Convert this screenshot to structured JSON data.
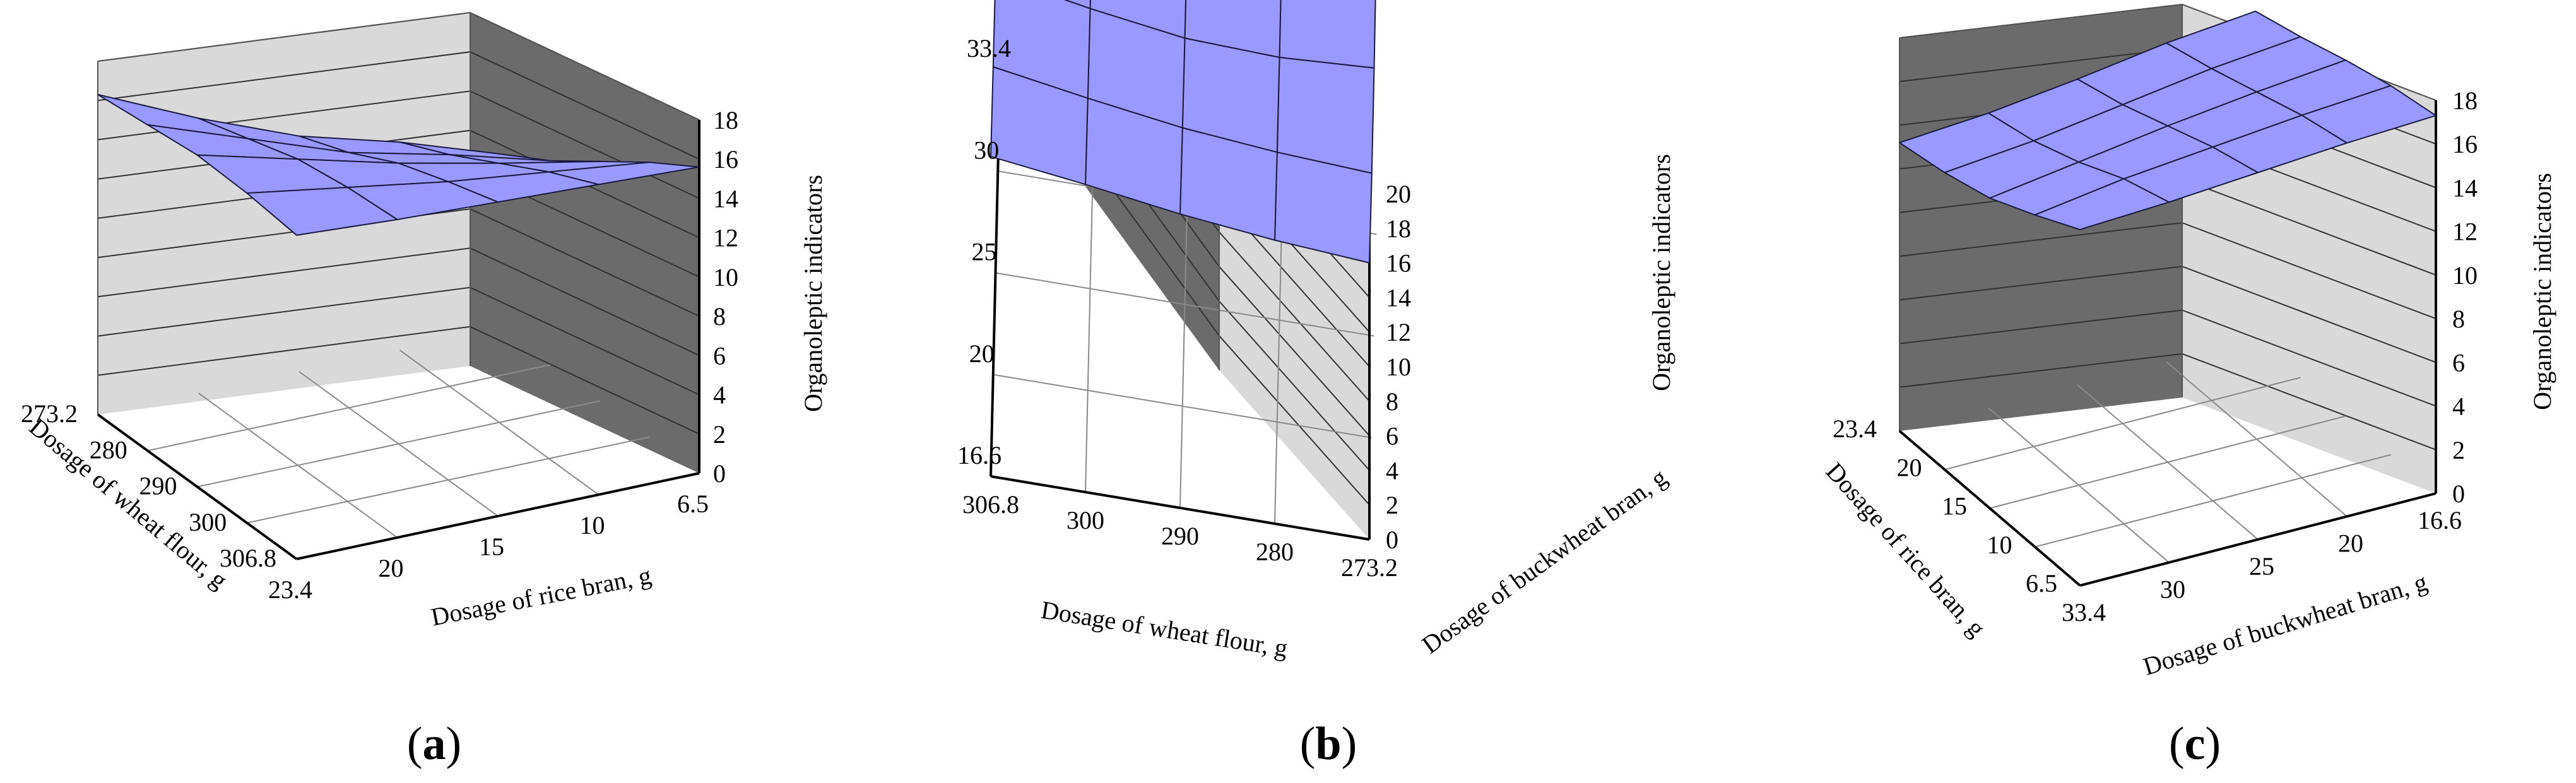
{
  "figure": {
    "colors": {
      "surface": "#9999ff",
      "surface_edge": "#1a1a40",
      "back_wall": "#6b6b6b",
      "side_wall": "#d9d9d9",
      "floor": "#ffffff",
      "gridline": "#8a8a8a",
      "frame": "#000000"
    },
    "panels": [
      {
        "caption_open": "(",
        "caption_letter": "a",
        "caption_close": ")"
      },
      {
        "caption_open": "(",
        "caption_letter": "b",
        "caption_close": ")"
      },
      {
        "caption_open": "(",
        "caption_letter": "c",
        "caption_close": ")"
      }
    ]
  },
  "chart_data": [
    {
      "type": "surface",
      "panel": "a",
      "xlabel": "Dosage of wheat flour, g",
      "ylabel": "Dosage of rice bran, g",
      "zlabel": "Organoleptic indicators",
      "x_ticks": [
        "306.8",
        "300",
        "290",
        "280",
        "273.2"
      ],
      "y_ticks": [
        "23.4",
        "20",
        "15",
        "10",
        "6.5"
      ],
      "z_ticks": [
        "0",
        "2",
        "4",
        "6",
        "8",
        "10",
        "12",
        "14",
        "16",
        "18"
      ],
      "zlim": [
        0,
        18
      ],
      "x": [
        306.8,
        300,
        290,
        280,
        273.2
      ],
      "y": [
        6.5,
        10,
        15,
        20,
        23.4
      ],
      "z": [
        [
          16.5,
          16.8,
          16.9,
          16.6,
          16.3
        ],
        [
          16.2,
          16.0,
          15.6,
          14.8,
          14.0
        ],
        [
          16.0,
          15.2,
          14.3,
          13.0,
          12.0
        ],
        [
          15.8,
          14.6,
          13.2,
          11.8,
          10.6
        ],
        [
          15.6,
          14.0,
          12.2,
          10.4,
          8.9
        ]
      ]
    },
    {
      "type": "surface",
      "panel": "b",
      "xlabel": "Dosage of wheat flour, g",
      "ylabel": "Dosage of buckwheat bran, g",
      "zlabel": "Organoleptic indicators",
      "x_ticks": [
        "306.8",
        "300",
        "290",
        "280",
        "273.2"
      ],
      "y_ticks": [
        "16.6",
        "20",
        "25",
        "30",
        "33.4"
      ],
      "z_ticks": [
        "0",
        "2",
        "4",
        "6",
        "8",
        "10",
        "12",
        "14",
        "16",
        "18",
        "20"
      ],
      "zlim": [
        0,
        20
      ],
      "x": [
        306.8,
        300,
        290,
        280,
        273.2
      ],
      "y": [
        16.6,
        20,
        25,
        30,
        33.4
      ],
      "z": [
        [
          18.5,
          17.8,
          17.0,
          16.4,
          16.0
        ],
        [
          17.8,
          16.9,
          16.1,
          15.6,
          15.3
        ],
        [
          17.2,
          16.2,
          15.4,
          15.2,
          15.5
        ],
        [
          16.8,
          15.8,
          15.1,
          15.6,
          16.8
        ],
        [
          16.5,
          15.5,
          15.0,
          16.4,
          19.0
        ]
      ]
    },
    {
      "type": "surface",
      "panel": "c",
      "xlabel": "Dosage of buckwheat bran, g",
      "ylabel": "Dosage of rice bran, g",
      "zlabel": "Organoleptic indicators",
      "x_ticks": [
        "33.4",
        "30",
        "25",
        "20",
        "16.6"
      ],
      "y_ticks": [
        "6.5",
        "10",
        "15",
        "20",
        "23.4"
      ],
      "z_ticks": [
        "0",
        "2",
        "4",
        "6",
        "8",
        "10",
        "12",
        "14",
        "16",
        "18"
      ],
      "zlim": [
        0,
        18
      ],
      "x": [
        33.4,
        30,
        25,
        20,
        16.6
      ],
      "y": [
        6.5,
        10,
        15,
        20,
        23.4
      ],
      "z": [
        [
          16.3,
          16.5,
          16.8,
          17.1,
          17.3
        ],
        [
          15.2,
          15.8,
          16.2,
          16.6,
          16.9
        ],
        [
          14.2,
          14.8,
          15.4,
          15.9,
          16.3
        ],
        [
          13.6,
          14.0,
          14.6,
          15.2,
          15.6
        ],
        [
          13.2,
          13.5,
          14.0,
          14.6,
          15.0
        ]
      ]
    }
  ]
}
